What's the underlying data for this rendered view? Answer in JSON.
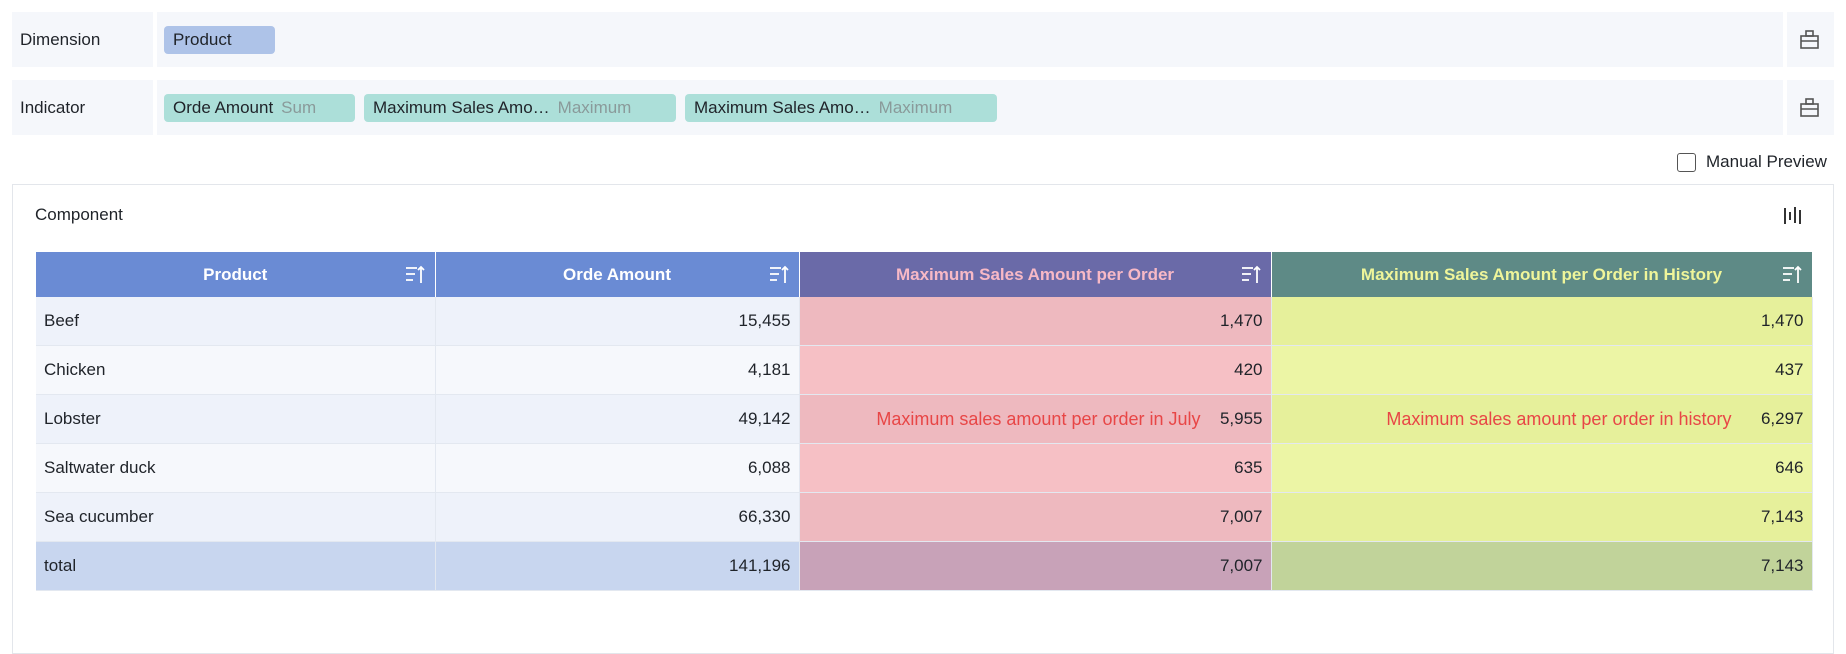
{
  "dimension": {
    "label": "Dimension",
    "chips": [
      "Product"
    ]
  },
  "indicator": {
    "label": "Indicator",
    "chips": [
      {
        "name": "Orde Amount",
        "aggregation": "Sum"
      },
      {
        "name": "Maximum Sales Amo…",
        "aggregation": "Maximum"
      },
      {
        "name": "Maximum Sales Amo…",
        "aggregation": "Maximum"
      }
    ]
  },
  "manual_preview": "Manual Preview",
  "component": {
    "title": "Component"
  },
  "table": {
    "columns": [
      "Product",
      "Orde Amount",
      "Maximum Sales Amount per Order",
      "Maximum Sales Amount per Order in History"
    ],
    "rows": [
      [
        "Beef",
        "15,455",
        "1,470",
        "1,470"
      ],
      [
        "Chicken",
        "4,181",
        "420",
        "437"
      ],
      [
        "Lobster",
        "49,142",
        "5,955",
        "6,297"
      ],
      [
        "Saltwater duck",
        "6,088",
        "635",
        "646"
      ],
      [
        "Sea cucumber",
        "66,330",
        "7,007",
        "7,143"
      ]
    ],
    "total": [
      "total",
      "141,196",
      "7,007",
      "7,143"
    ],
    "annotations": [
      "Maximum sales amount per order in July",
      "Maximum sales amount per order in history"
    ]
  }
}
